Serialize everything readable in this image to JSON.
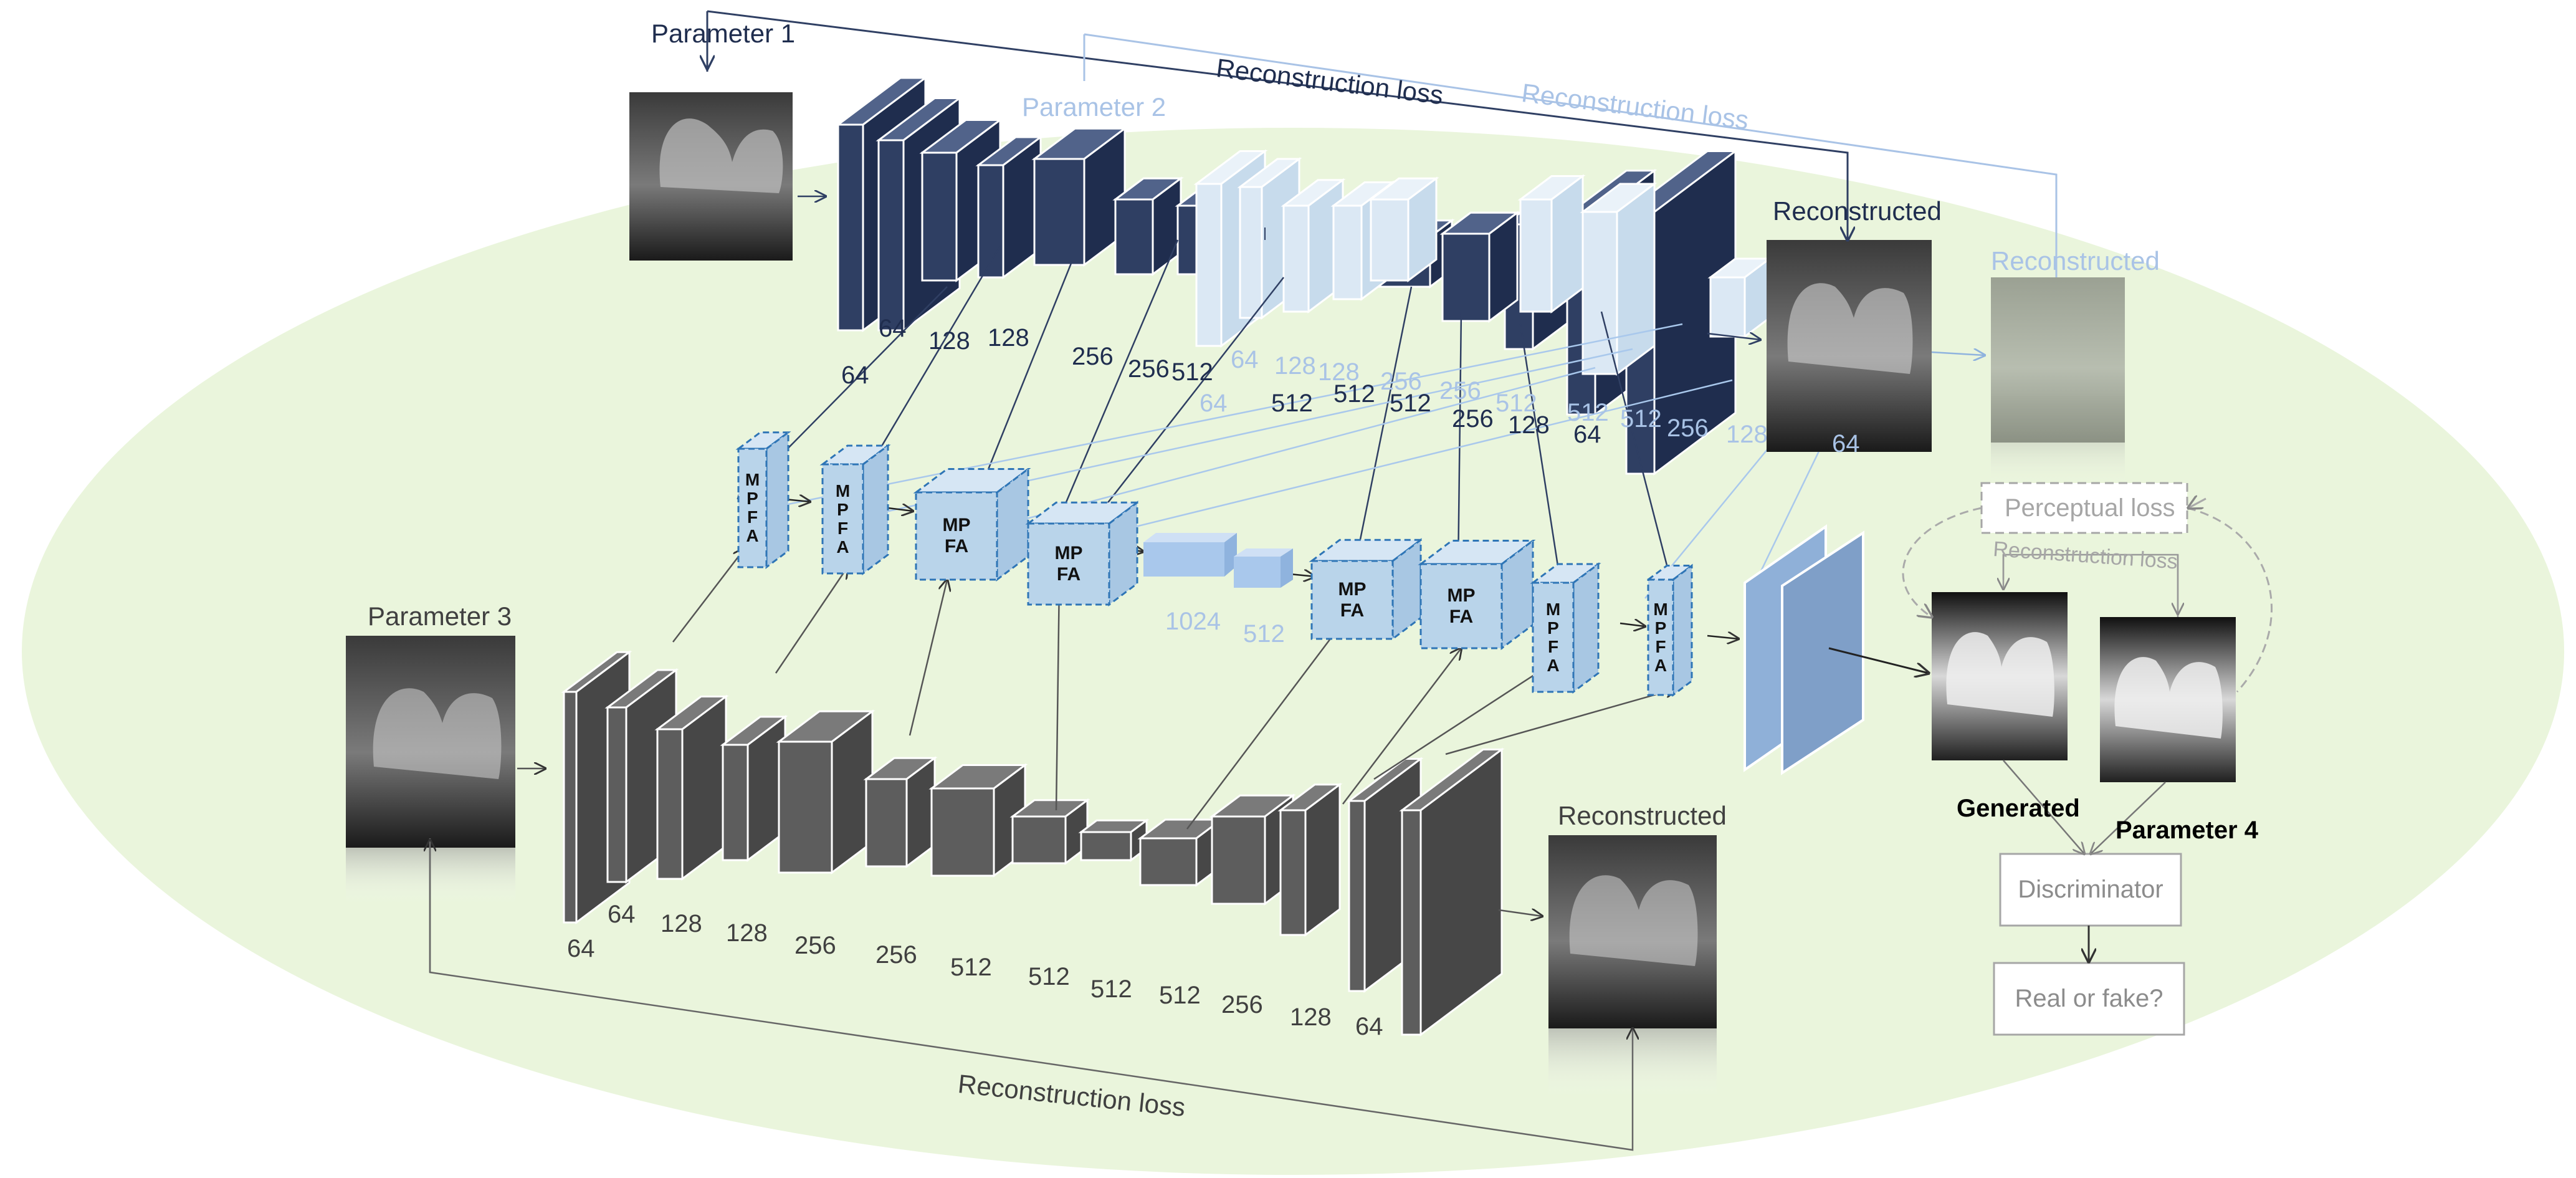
{
  "titles": {
    "parameter1": "Parameter 1",
    "parameter2": "Parameter 2",
    "parameter3": "Parameter 3",
    "parameter4": "Parameter 4",
    "reconstructed_top_dark": "Reconstructed",
    "reconstructed_top_light": "Reconstructed",
    "reconstructed_bottom": "Reconstructed",
    "generated": "Generated"
  },
  "losses": {
    "top_dark": "Reconstruction loss",
    "top_light": "Reconstruction loss",
    "bottom": "Reconstruction loss",
    "right_small": "Reconstruction loss",
    "perceptual": "Perceptual loss"
  },
  "gan": {
    "discriminator": "Discriminator",
    "real_or_fake": "Real or fake?"
  },
  "fusion": {
    "block_label": "MPFA",
    "block_label_split": [
      "MP",
      "FA"
    ],
    "block_label_letters": [
      "M",
      "P",
      "F",
      "A"
    ],
    "bottleneck_channels": [
      "1024",
      "512"
    ]
  },
  "top_dark_channels": [
    "64",
    "64",
    "128",
    "128",
    "256",
    "256",
    "512",
    "512",
    "512",
    "512",
    "256",
    "128",
    "64"
  ],
  "top_light_channels": [
    "64",
    "64",
    "128",
    "128",
    "256",
    "256",
    "512",
    "512",
    "512",
    "256",
    "128",
    "64"
  ],
  "bottom_channels": [
    "64",
    "64",
    "128",
    "128",
    "256",
    "256",
    "512",
    "512",
    "512",
    "512",
    "256",
    "128",
    "64"
  ],
  "colors": {
    "ellipse_fill": "#eaf5dc",
    "dark_block": "#2f3f63",
    "light_block": "#dbe8f4",
    "grey_block": "#5a5a5a",
    "mpfa_fill": "#b9d4ea",
    "mpfa_border": "#2e75b6",
    "bottleneck": "#a9c8ec",
    "decoder_out": "#7f9fc8"
  }
}
